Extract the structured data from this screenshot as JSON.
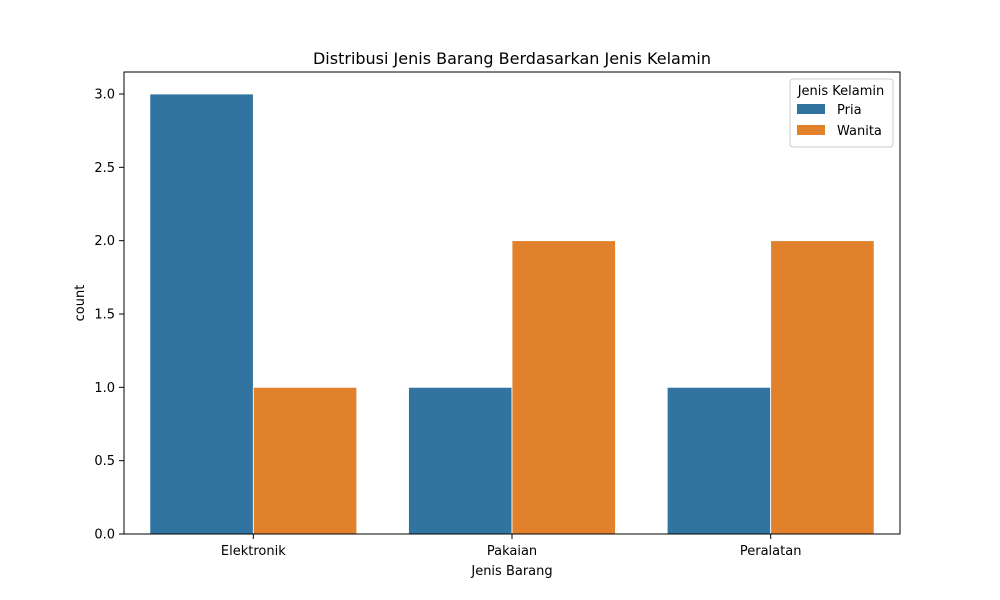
{
  "chart_data": {
    "type": "bar",
    "title": "Distribusi Jenis Barang Berdasarkan Jenis Kelamin",
    "xlabel": "Jenis Barang",
    "ylabel": "count",
    "categories": [
      "Elektronik",
      "Pakaian",
      "Peralatan"
    ],
    "series": [
      {
        "name": "Pria",
        "values": [
          3,
          1,
          1
        ],
        "color": "#3274a1"
      },
      {
        "name": "Wanita",
        "values": [
          1,
          2,
          2
        ],
        "color": "#e1812c"
      }
    ],
    "ylim": [
      0,
      3.15
    ],
    "yticks": [
      0.0,
      0.5,
      1.0,
      1.5,
      2.0,
      2.5,
      3.0
    ],
    "grid": false,
    "legend": {
      "title": "Jenis Kelamin",
      "position": "top-right"
    }
  }
}
